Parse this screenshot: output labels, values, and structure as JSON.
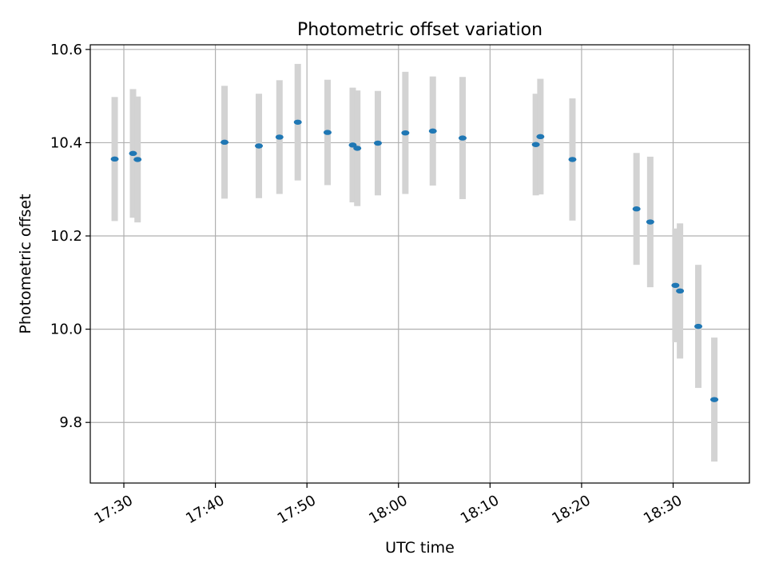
{
  "chart_data": {
    "type": "scatter",
    "title": "Photometric offset variation",
    "xlabel": "UTC time",
    "ylabel": "Photometric offset",
    "xlim": [
      "17:26:20",
      "18:38:20"
    ],
    "ylim": [
      9.67,
      10.61
    ],
    "grid": true,
    "x_ticks": [
      "17:30",
      "17:40",
      "17:50",
      "18:00",
      "18:10",
      "18:20",
      "18:30"
    ],
    "y_ticks": [
      "9.8",
      "10.0",
      "10.2",
      "10.4",
      "10.6"
    ],
    "colors": {
      "point": "#1f77b4",
      "errorbar": "#d3d3d3",
      "grid": "#b0b0b0"
    },
    "series": [
      {
        "points": [
          {
            "x": "17:29:00",
            "y": 10.365,
            "err": 0.133
          },
          {
            "x": "17:31:00",
            "y": 10.377,
            "err": 0.138
          },
          {
            "x": "17:31:30",
            "y": 10.364,
            "err": 0.135
          },
          {
            "x": "17:41:00",
            "y": 10.401,
            "err": 0.121
          },
          {
            "x": "17:44:45",
            "y": 10.393,
            "err": 0.112
          },
          {
            "x": "17:47:00",
            "y": 10.412,
            "err": 0.122
          },
          {
            "x": "17:49:00",
            "y": 10.444,
            "err": 0.125
          },
          {
            "x": "17:52:15",
            "y": 10.422,
            "err": 0.113
          },
          {
            "x": "17:55:00",
            "y": 10.395,
            "err": 0.123
          },
          {
            "x": "17:55:30",
            "y": 10.388,
            "err": 0.124
          },
          {
            "x": "17:57:45",
            "y": 10.399,
            "err": 0.112
          },
          {
            "x": "18:00:45",
            "y": 10.421,
            "err": 0.131
          },
          {
            "x": "18:03:45",
            "y": 10.425,
            "err": 0.117
          },
          {
            "x": "18:07:00",
            "y": 10.41,
            "err": 0.131
          },
          {
            "x": "18:15:00",
            "y": 10.396,
            "err": 0.109
          },
          {
            "x": "18:15:30",
            "y": 10.413,
            "err": 0.124
          },
          {
            "x": "18:19:00",
            "y": 10.364,
            "err": 0.131
          },
          {
            "x": "18:26:00",
            "y": 10.258,
            "err": 0.12
          },
          {
            "x": "18:27:30",
            "y": 10.23,
            "err": 0.14
          },
          {
            "x": "18:30:15",
            "y": 10.094,
            "err": 0.122
          },
          {
            "x": "18:30:45",
            "y": 10.082,
            "err": 0.145
          },
          {
            "x": "18:32:45",
            "y": 10.006,
            "err": 0.132
          },
          {
            "x": "18:34:30",
            "y": 9.849,
            "err": 0.133
          }
        ]
      }
    ]
  }
}
